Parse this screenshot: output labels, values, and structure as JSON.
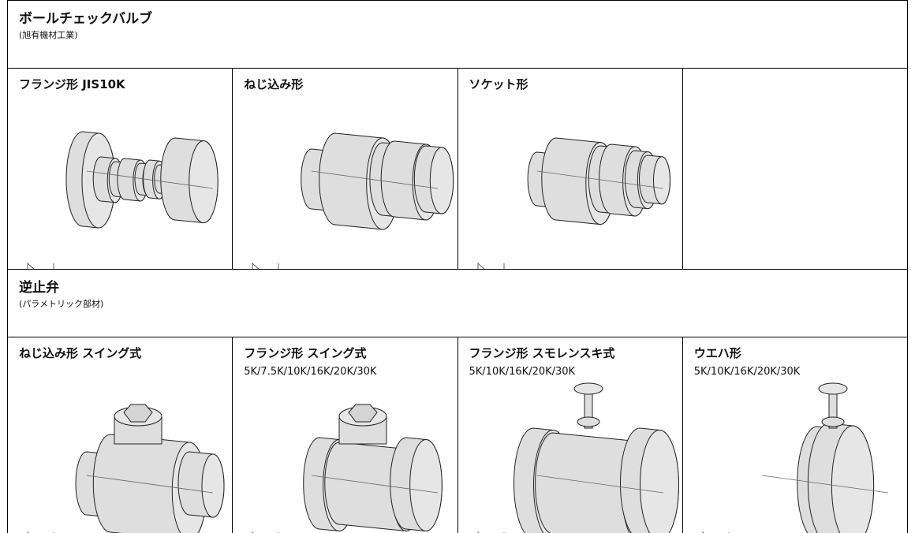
{
  "sections": [
    {
      "title": "ボールチェックバルブ",
      "subtitle": "(旭有機材工業)",
      "items": [
        {
          "label": "フランジ形 JIS10K"
        },
        {
          "label": "ねじ込み形"
        },
        {
          "label": "ソケット形"
        }
      ]
    },
    {
      "title": "逆止弁",
      "subtitle": "(パラメトリック部材)",
      "items": [
        {
          "label": "ねじ込み形 スイング式"
        },
        {
          "label": "フランジ形 スイング式",
          "spec": "5K/7.5K/10K/16K/20K/30K"
        },
        {
          "label": "フランジ形 スモレンスキ式",
          "spec": "5K/10K/16K/20K/30K"
        },
        {
          "label": "ウエハ形",
          "spec": "5K/10K/16K/20K/30K"
        }
      ]
    }
  ]
}
